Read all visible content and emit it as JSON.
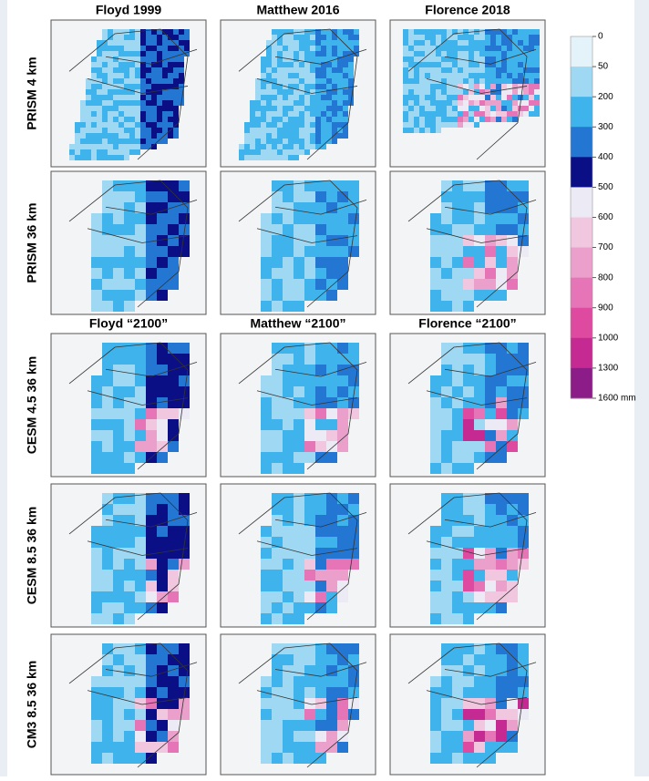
{
  "column_titles_observed": [
    "Floyd 1999",
    "Matthew 2016",
    "Florence 2018"
  ],
  "column_titles_future": [
    "Floyd “2100”",
    "Matthew “2100”",
    "Florence “2100”"
  ],
  "row_labels": [
    "PRISM 4 km",
    "PRISM 36 km",
    "CESM 4.5 36 km",
    "CESM 8.5 36 km",
    "CM3 8.5 36 km"
  ],
  "colorbar": {
    "ticks": [
      0,
      50,
      200,
      300,
      400,
      500,
      600,
      700,
      800,
      900,
      1000,
      1300,
      {
        "value": 1600,
        "label": "1600 mm"
      }
    ],
    "colors": [
      "#e4f2fa",
      "#9fd8f3",
      "#3fb3ec",
      "#2377d2",
      "#0b0f86",
      "#eceaf4",
      "#f1c6df",
      "#eaa0cb",
      "#e575b6",
      "#de4aa0",
      "#c42a92",
      "#8c1d88"
    ]
  }
}
